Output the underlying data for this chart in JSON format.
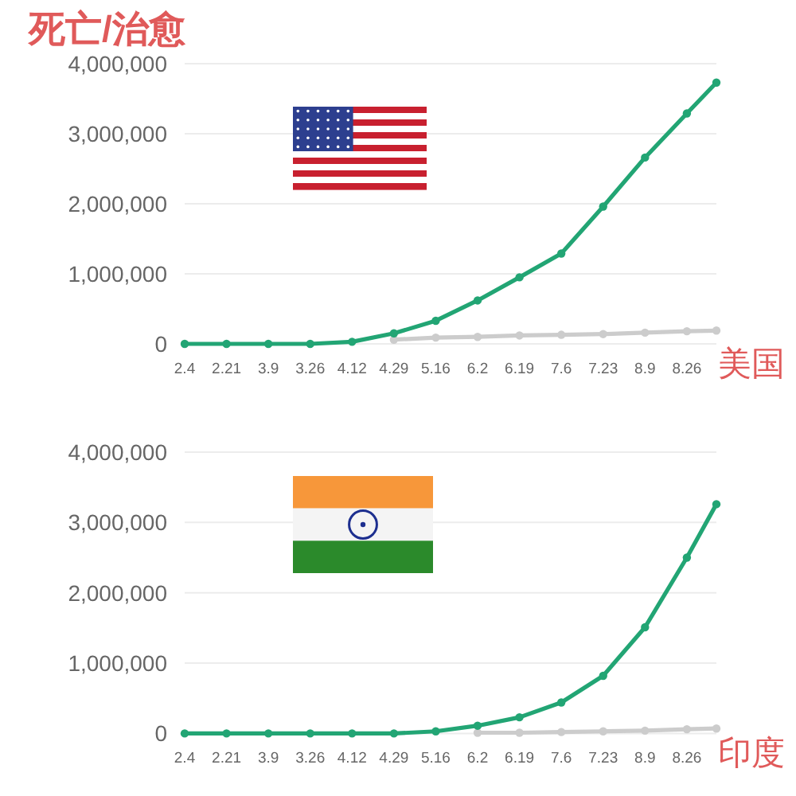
{
  "chart_data": [
    {
      "type": "line",
      "title": "死亡/治愈",
      "annotations": [
        "美国"
      ],
      "x": [
        "--02-04",
        "--02-21",
        "--03-09",
        "--03-26",
        "--04-12",
        "--04-29",
        "--05-16",
        "--06-02",
        "--06-19",
        "--07-06",
        "--07-23",
        "--08-09",
        "--08-26",
        "--09-07"
      ],
      "series": [
        {
          "color": "#cccccc",
          "values": [
            null,
            null,
            null,
            null,
            null,
            60000,
            90000,
            100000,
            120000,
            130000,
            140000,
            160000,
            180000,
            190000
          ]
        },
        {
          "color": "#22a574",
          "values": [
            0,
            0,
            0,
            0,
            30000,
            150000,
            330000,
            620000,
            950000,
            1290000,
            1960000,
            2660000,
            3290000,
            3730000
          ]
        }
      ],
      "xlim": [
        "--02-04",
        "--09-07"
      ],
      "ylim": [
        0,
        4000000
      ],
      "xticks": [
        {
          "value": "--02-04",
          "label": "2.4"
        },
        {
          "value": "--02-21",
          "label": "2.21"
        },
        {
          "value": "--03-09",
          "label": "3.9"
        },
        {
          "value": "--03-26",
          "label": "3.26"
        },
        {
          "value": "--04-12",
          "label": "4.12"
        },
        {
          "value": "--04-29",
          "label": "4.29"
        },
        {
          "value": "--05-16",
          "label": "5.16"
        },
        {
          "value": "--06-02",
          "label": "6.2"
        },
        {
          "value": "--06-19",
          "label": "6.19"
        },
        {
          "value": "--07-06",
          "label": "7.6"
        },
        {
          "value": "--07-23",
          "label": "7.23"
        },
        {
          "value": "--08-09",
          "label": "8.9"
        },
        {
          "value": "--08-26",
          "label": "8.26"
        }
      ],
      "yticks": [
        0,
        {
          "value": 1000000,
          "label": "1,000,000"
        },
        {
          "value": 2000000,
          "label": "2,000,000"
        },
        {
          "value": 3000000,
          "label": "3,000,000"
        },
        {
          "value": 4000000,
          "label": "4,000,000"
        }
      ],
      "grid": "y",
      "marker": "circle"
    },
    {
      "type": "line",
      "annotations": [
        "印度"
      ],
      "x": [
        "--02-04",
        "--02-21",
        "--03-09",
        "--03-26",
        "--04-12",
        "--04-29",
        "--05-16",
        "--06-02",
        "--06-19",
        "--07-06",
        "--07-23",
        "--08-09",
        "--08-26",
        "--09-07"
      ],
      "series": [
        {
          "color": "#cccccc",
          "values": [
            null,
            null,
            null,
            null,
            null,
            null,
            null,
            10000,
            10000,
            20000,
            30000,
            40000,
            60000,
            70000
          ]
        },
        {
          "color": "#22a574",
          "values": [
            0,
            0,
            0,
            0,
            0,
            0,
            30000,
            110000,
            230000,
            440000,
            820000,
            1510000,
            2500000,
            3260000
          ]
        }
      ],
      "xlim": [
        "--02-04",
        "--09-07"
      ],
      "ylim": [
        0,
        4000000
      ],
      "xticks": [
        {
          "value": "--02-04",
          "label": "2.4"
        },
        {
          "value": "--02-21",
          "label": "2.21"
        },
        {
          "value": "--03-09",
          "label": "3.9"
        },
        {
          "value": "--03-26",
          "label": "3.26"
        },
        {
          "value": "--04-12",
          "label": "4.12"
        },
        {
          "value": "--04-29",
          "label": "4.29"
        },
        {
          "value": "--05-16",
          "label": "5.16"
        },
        {
          "value": "--06-02",
          "label": "6.2"
        },
        {
          "value": "--06-19",
          "label": "6.19"
        },
        {
          "value": "--07-06",
          "label": "7.6"
        },
        {
          "value": "--07-23",
          "label": "7.23"
        },
        {
          "value": "--08-09",
          "label": "8.9"
        },
        {
          "value": "--08-26",
          "label": "8.26"
        }
      ],
      "yticks": [
        0,
        {
          "value": 1000000,
          "label": "1,000,000"
        },
        {
          "value": 2000000,
          "label": "2,000,000"
        },
        {
          "value": 3000000,
          "label": "3,000,000"
        },
        {
          "value": 4000000,
          "label": "4,000,000"
        }
      ],
      "grid": "y",
      "marker": "circle"
    }
  ]
}
